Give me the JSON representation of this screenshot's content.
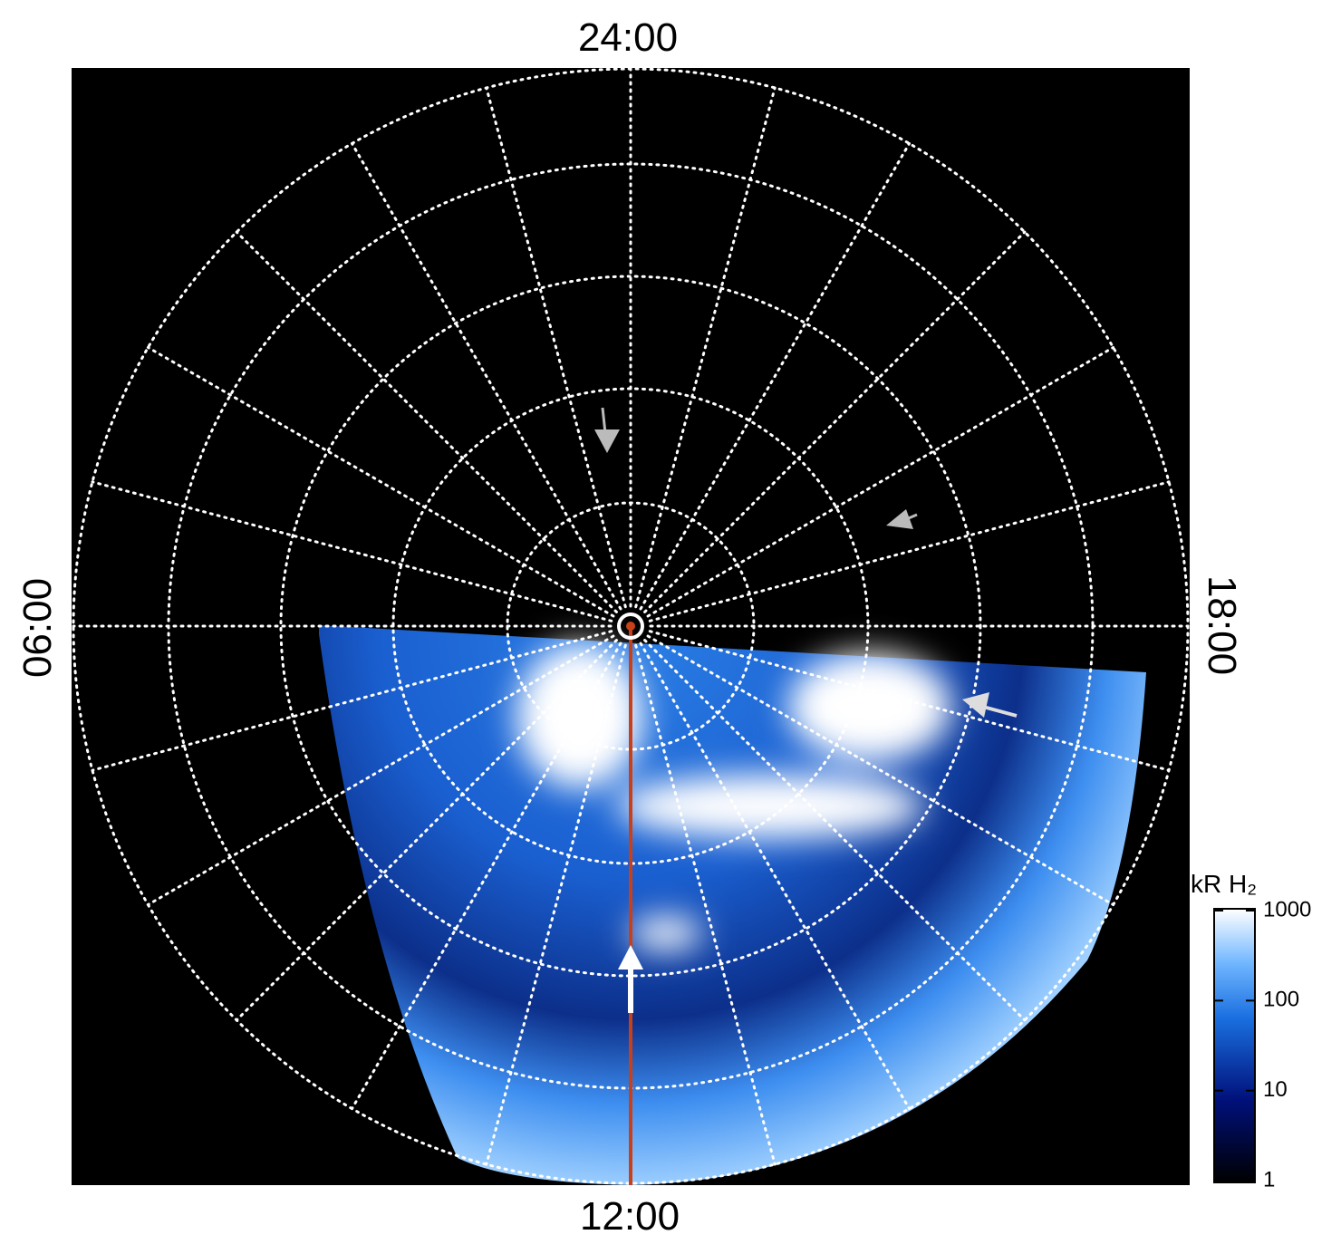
{
  "local_time_labels": {
    "top": "24:00",
    "bottom": "12:00",
    "left": "06:00",
    "right": "18:00"
  },
  "colorbar": {
    "title": "kR H₂",
    "lim": [
      1,
      1000
    ],
    "ticks": [
      1,
      10,
      100,
      1000
    ],
    "log_scale": true
  }
}
